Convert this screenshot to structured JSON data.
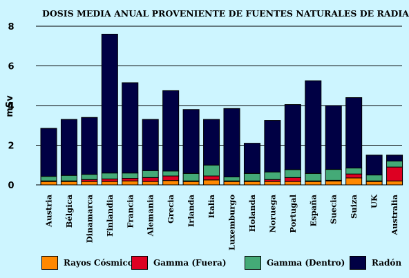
{
  "chart_data": {
    "type": "bar",
    "stacked": true,
    "title": "DOSIS MEDIA ANUAL PROVENIENTE DE FUENTES NATURALES DE RADIACIÓN",
    "ylabel": "mSv",
    "xlabel": "",
    "ylim": [
      0,
      8
    ],
    "yticks": [
      0,
      2,
      4,
      6,
      8
    ],
    "grid": true,
    "legend_position": "bottom",
    "categories": [
      "Austria",
      "Bélgica",
      "Dinamarca",
      "Finlandia",
      "Francia",
      "Alemania",
      "Grecia",
      "Irlanda",
      "Italia",
      "Luxemburgo",
      "Holanda",
      "Noruega",
      "Portugal",
      "España",
      "Suecia",
      "Suiza",
      "UK",
      "Australia"
    ],
    "series": [
      {
        "name": "Rayos Cósmicos",
        "color": "#ff8800",
        "values": [
          0.17,
          0.17,
          0.17,
          0.17,
          0.2,
          0.17,
          0.22,
          0.17,
          0.25,
          0.17,
          0.17,
          0.17,
          0.17,
          0.17,
          0.2,
          0.35,
          0.17,
          0.2
        ]
      },
      {
        "name": "Gamma (Fuera)",
        "color": "#dd0022",
        "values": [
          0.03,
          0.03,
          0.1,
          0.13,
          0.13,
          0.2,
          0.23,
          0.03,
          0.2,
          0.03,
          0.03,
          0.1,
          0.2,
          0.03,
          0.03,
          0.2,
          0.03,
          0.7
        ]
      },
      {
        "name": "Gamma (Dentro)",
        "color": "#44aa77",
        "values": [
          0.23,
          0.28,
          0.26,
          0.3,
          0.27,
          0.35,
          0.25,
          0.38,
          0.55,
          0.2,
          0.38,
          0.38,
          0.4,
          0.38,
          0.55,
          0.3,
          0.3,
          0.3
        ]
      },
      {
        "name": "Radón",
        "color": "#000044",
        "values": [
          2.42,
          2.82,
          2.87,
          7.0,
          4.55,
          2.58,
          4.05,
          3.22,
          2.3,
          3.45,
          1.52,
          2.6,
          3.28,
          4.67,
          3.22,
          3.55,
          1.0,
          0.3
        ]
      }
    ]
  }
}
